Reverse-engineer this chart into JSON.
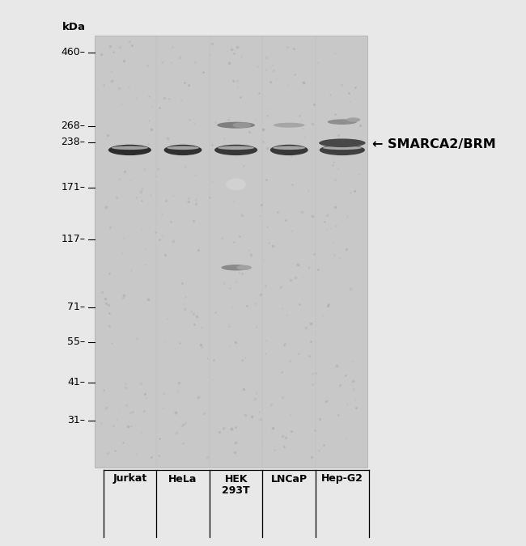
{
  "fig_bg_color": "#e8e8e8",
  "gel_bg_color": "#c8c8c8",
  "mw_labels": [
    "460",
    "268",
    "238",
    "171",
    "117",
    "71",
    "55",
    "41",
    "31"
  ],
  "mw_values": [
    460,
    268,
    238,
    171,
    117,
    71,
    55,
    41,
    31
  ],
  "sample_labels": [
    "Jurkat",
    "HeLa",
    "HEK\n293T",
    "LNCaP",
    "Hep-G2"
  ],
  "annotation_label": "← SMARCA2/BRM",
  "smarca2_mw": 225,
  "upper_band_mw": 270,
  "lower_band_mw": 95
}
